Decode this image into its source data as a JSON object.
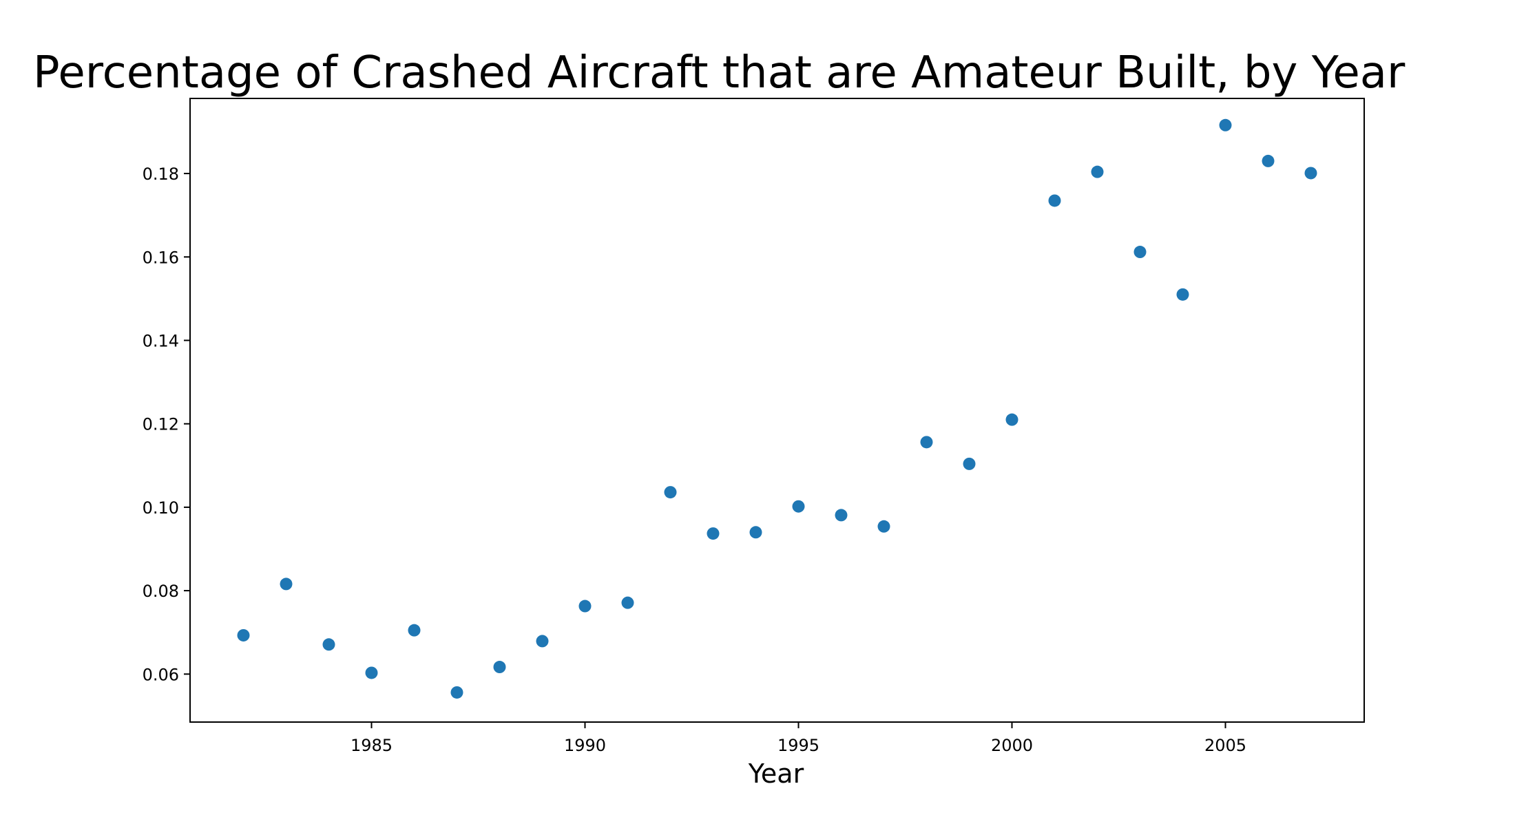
{
  "chart_data": {
    "type": "scatter",
    "title": "Percentage of Crashed Aircraft that are Amateur Built, by Year",
    "xlabel": "Year",
    "ylabel": "",
    "xlim": [
      1980.75,
      2008.25
    ],
    "ylim": [
      0.0485,
      0.198
    ],
    "xticks": [
      1985,
      1990,
      1995,
      2000,
      2005
    ],
    "yticks": [
      0.06,
      0.08,
      0.1,
      0.12,
      0.14,
      0.16,
      0.18
    ],
    "xtick_labels": [
      "1985",
      "1990",
      "1995",
      "2000",
      "2005"
    ],
    "ytick_labels": [
      "0.06",
      "0.08",
      "0.10",
      "0.12",
      "0.14",
      "0.16",
      "0.18"
    ],
    "grid": false,
    "legend": "none",
    "marker_color": "#1f77b4",
    "x": [
      1982,
      1983,
      1984,
      1985,
      1986,
      1987,
      1988,
      1989,
      1990,
      1991,
      1992,
      1993,
      1994,
      1995,
      1996,
      1997,
      1998,
      1999,
      2000,
      2001,
      2002,
      2003,
      2004,
      2005,
      2006,
      2007
    ],
    "y": [
      0.0693,
      0.0816,
      0.0671,
      0.0603,
      0.0705,
      0.0556,
      0.0617,
      0.0679,
      0.0763,
      0.0771,
      0.1036,
      0.0937,
      0.094,
      0.1002,
      0.0981,
      0.0954,
      0.1156,
      0.1104,
      0.121,
      0.1735,
      0.1804,
      0.1612,
      0.151,
      0.1916,
      0.183,
      0.1801
    ]
  }
}
